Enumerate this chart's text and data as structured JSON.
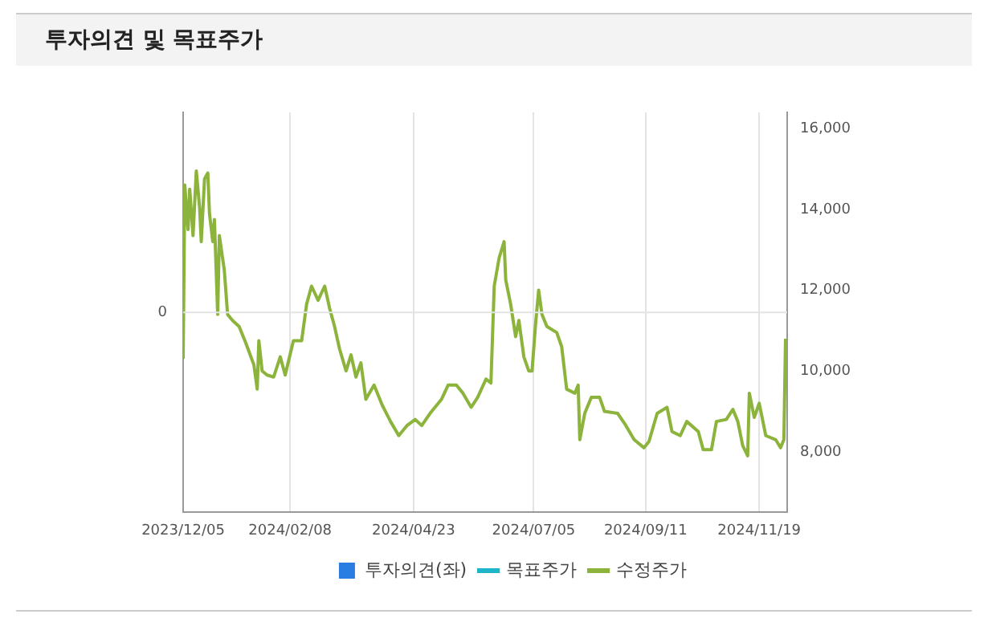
{
  "chart_data": {
    "type": "line",
    "title": "투자의견 및 목표주가",
    "x": [
      "2023-12-05",
      "2023-12-06",
      "2023-12-08",
      "2023-12-09",
      "2023-12-11",
      "2023-12-13",
      "2023-12-15",
      "2023-12-16",
      "2023-12-18",
      "2023-12-20",
      "2023-12-21",
      "2023-12-23",
      "2023-12-24",
      "2023-12-26",
      "2023-12-27",
      "2023-12-30",
      "2024-01-01",
      "2024-01-04",
      "2024-01-08",
      "2024-01-12",
      "2024-01-17",
      "2024-01-19",
      "2024-01-20",
      "2024-01-22",
      "2024-01-25",
      "2024-01-29",
      "2024-02-02",
      "2024-02-05",
      "2024-02-10",
      "2024-02-15",
      "2024-02-18",
      "2024-02-21",
      "2024-02-25",
      "2024-02-29",
      "2024-03-03",
      "2024-03-06",
      "2024-03-09",
      "2024-03-13",
      "2024-03-16",
      "2024-03-19",
      "2024-03-22",
      "2024-03-25",
      "2024-03-30",
      "2024-04-04",
      "2024-04-09",
      "2024-04-14",
      "2024-04-19",
      "2024-04-24",
      "2024-04-28",
      "2024-05-03",
      "2024-05-10",
      "2024-05-14",
      "2024-05-19",
      "2024-05-23",
      "2024-05-28",
      "2024-06-01",
      "2024-06-06",
      "2024-06-09",
      "2024-06-11",
      "2024-06-14",
      "2024-06-17",
      "2024-06-18",
      "2024-06-21",
      "2024-06-24",
      "2024-06-26",
      "2024-06-29",
      "2024-07-02",
      "2024-07-04",
      "2024-07-06",
      "2024-07-08",
      "2024-07-10",
      "2024-07-13",
      "2024-07-19",
      "2024-07-22",
      "2024-07-25",
      "2024-07-30",
      "2024-08-01",
      "2024-08-02",
      "2024-08-05",
      "2024-08-09",
      "2024-08-14",
      "2024-08-17",
      "2024-08-25",
      "2024-08-30",
      "2024-09-04",
      "2024-09-10",
      "2024-09-13",
      "2024-09-18",
      "2024-09-24",
      "2024-09-27",
      "2024-10-02",
      "2024-10-06",
      "2024-10-13",
      "2024-10-16",
      "2024-10-21",
      "2024-10-24",
      "2024-10-30",
      "2024-11-03",
      "2024-11-06",
      "2024-11-09",
      "2024-11-12",
      "2024-11-13",
      "2024-11-16",
      "2024-11-19",
      "2024-11-23",
      "2024-11-29",
      "2024-12-02",
      "2024-12-04",
      "2024-12-05"
    ],
    "series": [
      {
        "name": "투자의견(좌)",
        "type": "bar",
        "color": "#2a7de1",
        "axis": "y",
        "values": [
          null,
          null,
          null,
          null,
          null,
          null,
          null,
          null,
          null,
          null,
          null,
          null,
          null,
          null,
          null,
          null,
          null,
          null,
          null,
          null,
          null,
          null,
          null,
          null,
          null,
          null,
          null,
          null,
          null,
          null,
          null,
          null,
          null,
          null,
          null,
          null,
          null,
          null,
          null,
          null,
          null,
          null,
          null,
          null,
          null,
          null,
          null,
          null,
          null,
          null,
          null,
          null,
          null,
          null,
          null,
          null,
          null,
          null,
          null,
          null,
          null,
          null,
          null,
          null,
          null,
          null,
          null,
          null,
          null,
          null,
          null,
          null,
          null,
          null,
          null,
          null,
          null,
          null,
          null,
          null,
          null,
          null,
          null,
          null,
          null,
          null,
          null,
          null,
          null,
          null,
          null,
          null,
          null,
          null,
          null,
          null,
          null,
          null,
          null,
          null,
          null,
          null,
          null,
          null,
          null,
          null,
          null,
          null,
          null
        ]
      },
      {
        "name": "목표주가",
        "type": "line",
        "color": "#1fb5c8",
        "axis": "y2",
        "values": [
          null,
          null,
          null,
          null,
          null,
          null,
          null,
          null,
          null,
          null,
          null,
          null,
          null,
          null,
          null,
          null,
          null,
          null,
          null,
          null,
          null,
          null,
          null,
          null,
          null,
          null,
          null,
          null,
          null,
          null,
          null,
          null,
          null,
          null,
          null,
          null,
          null,
          null,
          null,
          null,
          null,
          null,
          null,
          null,
          null,
          null,
          null,
          null,
          null,
          null,
          null,
          null,
          null,
          null,
          null,
          null,
          null,
          null,
          null,
          null,
          null,
          null,
          null,
          null,
          null,
          null,
          null,
          null,
          null,
          null,
          null,
          null,
          null,
          null,
          null,
          null,
          null,
          null,
          null,
          null,
          null,
          null,
          null,
          null,
          null,
          null,
          null,
          null,
          null,
          null,
          null,
          null,
          null,
          null,
          null,
          null,
          null,
          null,
          null,
          null,
          null,
          null,
          null,
          null,
          null,
          null,
          null,
          null,
          null
        ]
      },
      {
        "name": "수정주가",
        "color": "#8cb43c",
        "axis": "y2",
        "values": [
          10300,
          14600,
          13500,
          14500,
          13350,
          14950,
          14050,
          13200,
          14750,
          14900,
          13900,
          13200,
          13750,
          11400,
          13350,
          12500,
          11400,
          11250,
          11100,
          10700,
          10150,
          9550,
          10750,
          10000,
          9900,
          9850,
          10350,
          9900,
          10750,
          10750,
          11650,
          12100,
          11750,
          12100,
          11550,
          11100,
          10550,
          10000,
          10400,
          9850,
          10200,
          9300,
          9650,
          9150,
          8750,
          8400,
          8650,
          8800,
          8650,
          8950,
          9300,
          9650,
          9650,
          9450,
          9100,
          9350,
          9800,
          9700,
          12100,
          12800,
          13200,
          12250,
          11650,
          10850,
          11250,
          10350,
          10000,
          10000,
          11100,
          12000,
          11400,
          11100,
          10950,
          10600,
          9550,
          9450,
          9650,
          8300,
          8950,
          9350,
          9350,
          9000,
          8950,
          8650,
          8300,
          8100,
          8250,
          8950,
          9100,
          8500,
          8400,
          8750,
          8500,
          8050,
          8050,
          8750,
          8800,
          9050,
          8750,
          8150,
          7900,
          9450,
          8850,
          9200,
          8400,
          8300,
          8100,
          8300,
          10800
        ]
      }
    ],
    "xlim": [
      "2023-12-05",
      "2024-12-06"
    ],
    "xticks": [
      {
        "value": "2023-12-05",
        "label": "2023/12/05"
      },
      {
        "value": "2024-02-08",
        "label": "2024/02/08"
      },
      {
        "value": "2024-04-23",
        "label": "2024/04/23"
      },
      {
        "value": "2024-07-05",
        "label": "2024/07/05"
      },
      {
        "value": "2024-09-11",
        "label": "2024/09/11"
      },
      {
        "value": "2024-11-19",
        "label": "2024/11/19"
      }
    ],
    "annotations": [
      "0"
    ],
    "y2lim": [
      6500,
      16400
    ],
    "y2ticks": [
      {
        "value": 8000,
        "label": "8,000"
      },
      {
        "value": 10000,
        "label": "10,000"
      },
      {
        "value": 12000,
        "label": "12,000"
      },
      {
        "value": 14000,
        "label": "14,000"
      },
      {
        "value": 16000,
        "label": "16,000"
      }
    ],
    "grid": true,
    "legend": "bottom",
    "marker": "none",
    "line_style": "solid"
  }
}
